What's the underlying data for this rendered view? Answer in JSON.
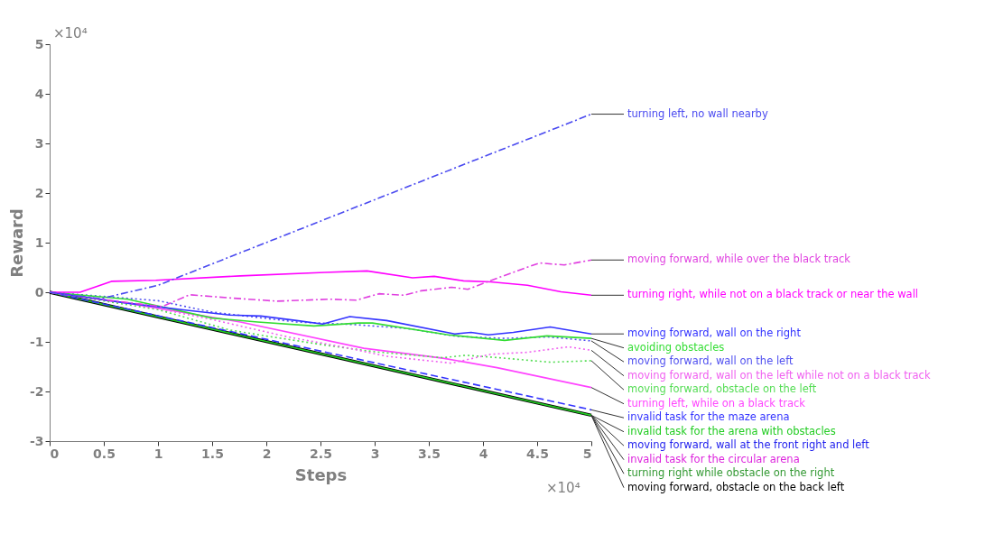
{
  "chart_data": {
    "type": "line",
    "xlabel": "Steps",
    "ylabel": "Reward",
    "annotations": [
      "×10⁴",
      "×10⁴"
    ],
    "xlim": [
      0,
      5
    ],
    "ylim": [
      -3,
      5
    ],
    "xticks": [
      0,
      0.5,
      1,
      1.5,
      2,
      2.5,
      3,
      3.5,
      4,
      4.5,
      5
    ],
    "yticks": [
      -3,
      -2,
      -1,
      0,
      1,
      2,
      3,
      4,
      5
    ],
    "grid": false,
    "legend": false,
    "series": [
      {
        "name": "turning left, no wall nearby",
        "color": "#4a4af0",
        "line_style": "dashdot",
        "x": [
          0,
          0.47,
          1.0,
          5.0
        ],
        "values": [
          0,
          -0.13,
          0.14,
          3.59
        ]
      },
      {
        "name": "moving forward, while over the black track",
        "color": "#e040e0",
        "line_style": "dashdot",
        "x": [
          0,
          0.5,
          1.04,
          1.29,
          1.7,
          2.1,
          2.59,
          2.83,
          3.04,
          3.27,
          3.43,
          3.71,
          3.86,
          4.15,
          4.52,
          4.75,
          5.0
        ],
        "values": [
          0,
          -0.15,
          -0.29,
          -0.05,
          -0.12,
          -0.18,
          -0.14,
          -0.16,
          -0.03,
          -0.06,
          0.03,
          0.1,
          0.06,
          0.3,
          0.59,
          0.55,
          0.65
        ]
      },
      {
        "name": "turning right, while not on a black track or near the wall",
        "color": "#ff00ff",
        "line_style": "solid",
        "x": [
          0,
          0.28,
          0.57,
          0.98,
          1.76,
          2.54,
          2.93,
          3.35,
          3.55,
          3.82,
          4.07,
          4.41,
          4.72,
          5.0
        ],
        "values": [
          0,
          0,
          0.22,
          0.24,
          0.33,
          0.4,
          0.43,
          0.29,
          0.32,
          0.23,
          0.21,
          0.14,
          0.01,
          -0.06
        ]
      },
      {
        "name": "moving forward, wall on the right",
        "color": "#3333ff",
        "line_style": "solid",
        "x": [
          0,
          0.72,
          1.25,
          1.66,
          1.95,
          2.28,
          2.52,
          2.77,
          3.11,
          3.74,
          3.89,
          4.05,
          4.28,
          4.62,
          5.0
        ],
        "values": [
          0,
          -0.22,
          -0.36,
          -0.46,
          -0.48,
          -0.57,
          -0.64,
          -0.49,
          -0.57,
          -0.84,
          -0.81,
          -0.86,
          -0.81,
          -0.7,
          -0.84
        ]
      },
      {
        "name": "avoiding obstacles",
        "color": "#33dd33",
        "line_style": "solid",
        "x": [
          0,
          0.72,
          1.5,
          1.92,
          2.44,
          2.85,
          2.98,
          3.68,
          4.2,
          4.59,
          5.0
        ],
        "values": [
          0,
          -0.14,
          -0.52,
          -0.6,
          -0.68,
          -0.62,
          -0.62,
          -0.86,
          -0.97,
          -0.88,
          -0.93
        ]
      },
      {
        "name": "moving forward, wall on the left",
        "color": "#5050f0",
        "line_style": "dotted",
        "x": [
          0,
          1.0,
          1.5,
          2.28,
          2.8,
          3.3,
          3.76,
          4.2,
          4.6,
          5.0
        ],
        "values": [
          0,
          -0.17,
          -0.4,
          -0.6,
          -0.65,
          -0.73,
          -0.89,
          -0.93,
          -0.9,
          -0.98
        ]
      },
      {
        "name": "moving forward, wall on the left while not on a black track",
        "color": "#f060f0",
        "line_style": "dotted",
        "x": [
          0,
          0.8,
          1.5,
          2.2,
          2.7,
          3.11,
          3.45,
          3.71,
          4.07,
          4.41,
          4.79,
          5.0
        ],
        "values": [
          0,
          -0.24,
          -0.55,
          -0.9,
          -1.1,
          -1.29,
          -1.37,
          -1.43,
          -1.25,
          -1.21,
          -1.1,
          -1.17
        ]
      },
      {
        "name": "moving forward, obstacle on the left",
        "color": "#55dd55",
        "line_style": "dotted",
        "x": [
          0,
          1.0,
          1.66,
          2.02,
          2.59,
          3.0,
          3.63,
          3.84,
          4.15,
          4.62,
          5.0
        ],
        "values": [
          0,
          -0.35,
          -0.76,
          -0.89,
          -1.08,
          -1.2,
          -1.32,
          -1.27,
          -1.32,
          -1.41,
          -1.38
        ]
      },
      {
        "name": "turning left, while on a black track",
        "color": "#ff44ff",
        "line_style": "solid",
        "x": [
          0,
          0.72,
          1.76,
          2.9,
          3.63,
          4.13,
          5.0
        ],
        "values": [
          0,
          -0.22,
          -0.6,
          -1.13,
          -1.33,
          -1.52,
          -1.92
        ]
      },
      {
        "name": "invalid task for the maze arena",
        "color": "#3333ff",
        "line_style": "dashed",
        "x": [
          0,
          5.0
        ],
        "values": [
          0,
          -2.37
        ]
      },
      {
        "name": "invalid task for the arena with obstacles",
        "color": "#22cc22",
        "line_style": "solid",
        "x": [
          0,
          5.0
        ],
        "values": [
          0,
          -2.48
        ]
      },
      {
        "name": "moving forward, wall at the front right and left",
        "color": "#2222ee",
        "line_style": "solid"
      },
      {
        "name": "invalid task for the circular arena",
        "color": "#dd22dd",
        "line_style": "solid"
      },
      {
        "name": "turning right while obstacle on the right",
        "color": "#339933",
        "line_style": "solid"
      },
      {
        "name": "moving forward, obstacle on the back left",
        "color": "#000000",
        "line_style": "solid",
        "x": [
          0,
          5.0
        ],
        "values": [
          0,
          -2.48
        ]
      }
    ]
  }
}
